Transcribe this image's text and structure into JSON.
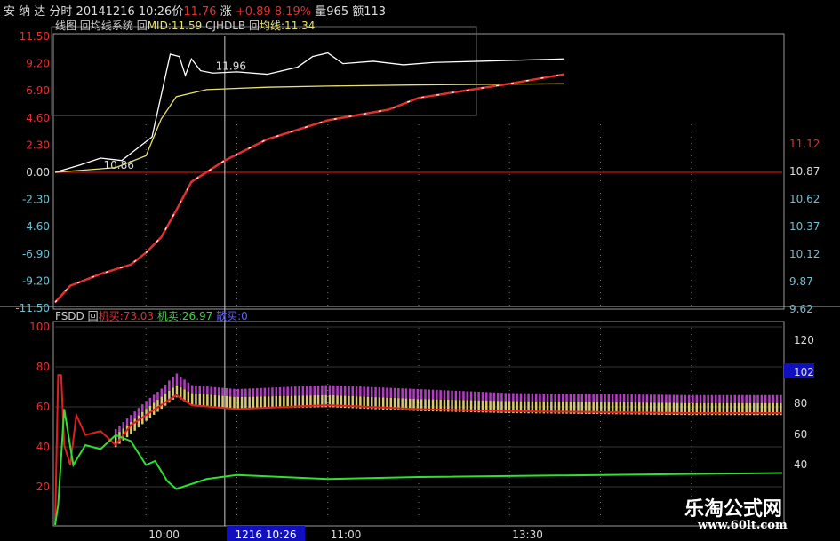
{
  "header": {
    "name": "安 纳 达  分时",
    "datetime": "20141216 10:26",
    "price_label": "价",
    "price": "11.76",
    "change_label": "涨",
    "change": "+0.89",
    "change_pct": "8.19%",
    "volume": "量965",
    "amount": "额113"
  },
  "legend_top": {
    "name": "线图",
    "sys": "回均线系统",
    "mid_prefix": "回",
    "mid": "MID:11.59",
    "cjhdlb": "CJHDLB",
    "avg_prefix": "回",
    "avg": "均线:11.34"
  },
  "legend_bottom": {
    "name": "FSDD",
    "prefix": "回",
    "buy": "机买:73.03",
    "sell": "机卖:26.97",
    "retail": "散买:0"
  },
  "cursor_label": "1216 10:26",
  "watermark": {
    "title": "乐淘公式网",
    "url": "www.60lt.com"
  },
  "colors": {
    "price": "#ffffff",
    "avg": "#e8e070",
    "cum": "#e03030",
    "buy": "#e02020",
    "sell": "#30e030",
    "bar_purple": "#b040c0",
    "bar_yellow": "#d8c870",
    "zero_line": "#a01010",
    "grid": "#888888"
  },
  "chart_data": [
    {
      "type": "line",
      "panel": "top",
      "left_axis_ticks": [
        "11.50",
        "9.20",
        "6.90",
        "4.60",
        "2.30",
        "0.00",
        "-2.30",
        "-4.60",
        "-6.90",
        "-9.20",
        "-11.50"
      ],
      "right_axis_ticks": [
        "11.12",
        "10.87",
        "10.62",
        "10.37",
        "10.12",
        "9.87",
        "9.62"
      ],
      "ylim": [
        -11.5,
        11.5
      ],
      "x_ticks": [
        "10:00",
        "11:00",
        "13:30"
      ],
      "annotations": [
        "10.86",
        "11.96"
      ],
      "series": [
        {
          "key": "price",
          "x": [
            "09:30",
            "09:38",
            "09:45",
            "09:52",
            "09:58",
            "10:02",
            "10:05",
            "10:08",
            "10:11",
            "10:13",
            "10:15",
            "10:18",
            "10:22",
            "10:30",
            "10:40",
            "10:50",
            "10:55",
            "11:00",
            "11:05",
            "11:15",
            "11:25",
            "13:05",
            "13:20",
            "13:48"
          ],
          "values": [
            0,
            0.6,
            1.2,
            1.0,
            2.2,
            3.0,
            6.5,
            10.0,
            9.8,
            8.2,
            9.6,
            8.6,
            8.4,
            8.5,
            8.3,
            8.9,
            9.8,
            10.1,
            9.2,
            9.4,
            9.1,
            9.3,
            9.4,
            9.6
          ]
        },
        {
          "key": "avg",
          "x": [
            "09:30",
            "09:50",
            "10:00",
            "10:05",
            "10:10",
            "10:20",
            "10:40",
            "11:00",
            "13:00",
            "13:48"
          ],
          "values": [
            0,
            0.4,
            1.4,
            4.5,
            6.4,
            7.0,
            7.2,
            7.3,
            7.4,
            7.5
          ]
        },
        {
          "key": "cum",
          "x": [
            "09:30",
            "09:35",
            "09:45",
            "09:55",
            "10:00",
            "10:05",
            "10:10",
            "10:15",
            "10:26",
            "10:40",
            "11:00",
            "11:20",
            "13:00",
            "13:30",
            "13:48"
          ],
          "values": [
            -11,
            -9.6,
            -8.6,
            -7.8,
            -6.8,
            -5.5,
            -3.2,
            -0.8,
            1.0,
            2.8,
            4.4,
            5.3,
            6.3,
            7.5,
            8.3
          ]
        }
      ]
    },
    {
      "type": "line",
      "panel": "bottom",
      "left_axis_ticks": [
        "100",
        "80",
        "60",
        "40",
        "20"
      ],
      "right_axis_ticks": [
        "120",
        "102",
        "80",
        "60",
        "40"
      ],
      "ylim": [
        0,
        100
      ],
      "series": [
        {
          "key": "buy",
          "name": "机买",
          "x": [
            "09:30",
            "09:31",
            "09:32",
            "09:33",
            "09:35",
            "09:37",
            "09:40",
            "09:45",
            "09:50",
            "09:55",
            "10:00",
            "10:05",
            "10:10",
            "10:15",
            "10:30",
            "11:00",
            "11:30",
            "13:30",
            "14:30",
            "15:00"
          ],
          "values": [
            0,
            75,
            75,
            40,
            30,
            55,
            45,
            47,
            40,
            50,
            55,
            60,
            65,
            60,
            58,
            60,
            58,
            57,
            56,
            56
          ]
        },
        {
          "key": "sell",
          "name": "机卖",
          "x": [
            "09:30",
            "09:31",
            "09:33",
            "09:36",
            "09:40",
            "09:45",
            "09:50",
            "09:55",
            "10:00",
            "10:03",
            "10:07",
            "10:10",
            "10:20",
            "10:30",
            "11:00",
            "13:00",
            "15:00"
          ],
          "values": [
            0,
            10,
            58,
            30,
            40,
            38,
            45,
            42,
            30,
            32,
            22,
            18,
            23,
            25,
            23,
            24,
            26
          ]
        },
        {
          "key": "bars",
          "x": [
            "09:50",
            "10:00",
            "10:05",
            "10:10",
            "10:15",
            "10:30",
            "11:00",
            "11:30",
            "13:30",
            "14:30",
            "15:00"
          ],
          "purple": [
            48,
            62,
            68,
            76,
            70,
            68,
            70,
            68,
            66,
            65,
            65
          ],
          "yellow": [
            45,
            58,
            64,
            70,
            66,
            64,
            65,
            63,
            62,
            61,
            61
          ]
        }
      ]
    }
  ]
}
